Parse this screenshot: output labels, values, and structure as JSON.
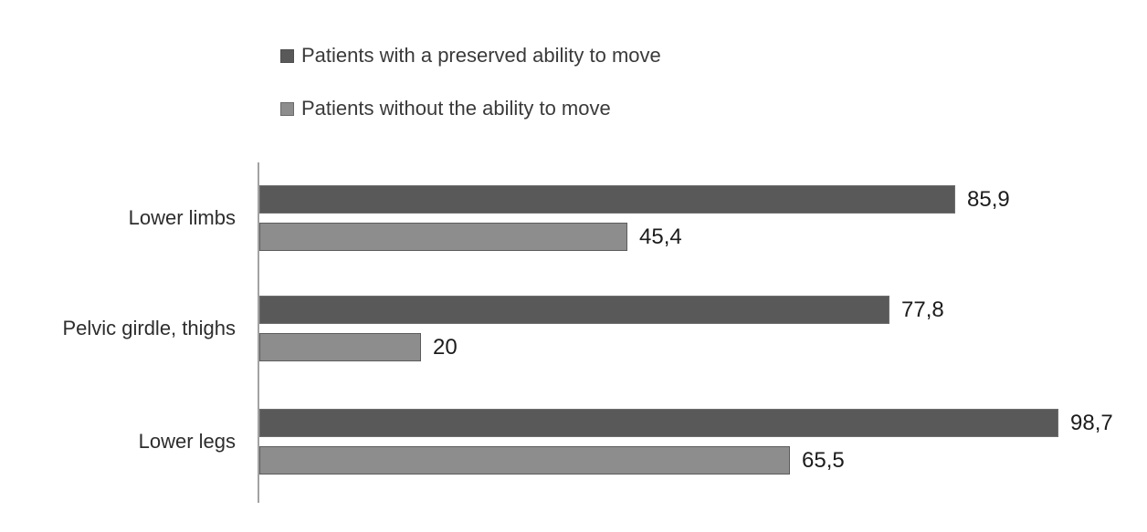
{
  "chart_data": {
    "type": "bar",
    "orientation": "horizontal",
    "title": "",
    "xlabel": "",
    "ylabel": "",
    "xlim": [
      0,
      100
    ],
    "grid": false,
    "legend_position": "top",
    "axis_color": "#a2a2a2",
    "background_color": "#ffffff",
    "decimal_separator": ",",
    "categories": [
      "Lower limbs",
      "Pelvic girdle, thighs",
      "Lower legs"
    ],
    "series": [
      {
        "name": "Patients with a preserved ability to move",
        "color": "#595959",
        "values": [
          85.9,
          77.8,
          98.7
        ],
        "display_values": [
          "85,9",
          "77,8",
          "98,7"
        ]
      },
      {
        "name": "Patients without the ability to move",
        "color": "#8d8d8d",
        "values": [
          45.4,
          20,
          65.5
        ],
        "display_values": [
          "45,4",
          "20",
          "65,5"
        ]
      }
    ]
  }
}
